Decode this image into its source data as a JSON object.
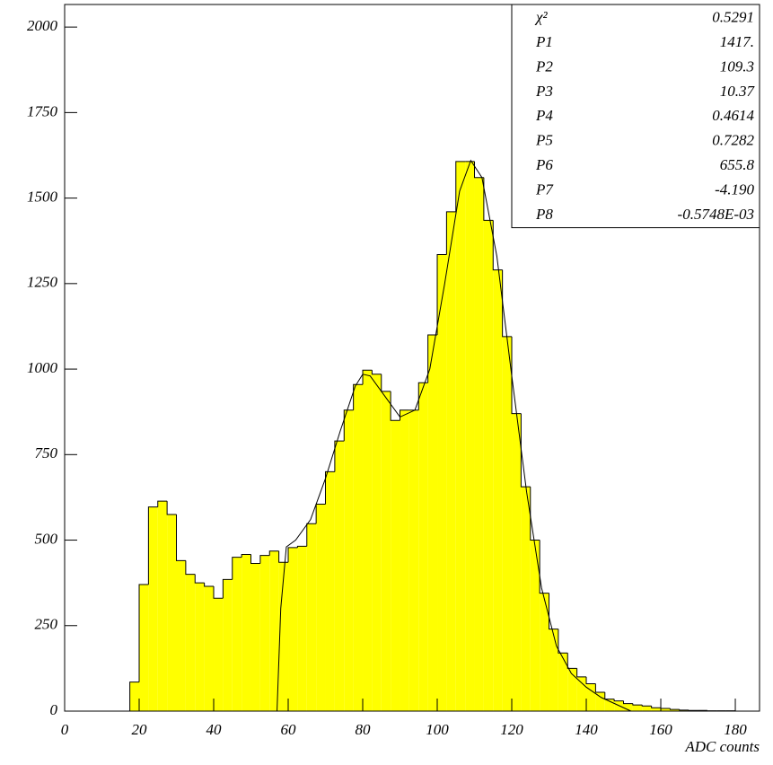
{
  "chart_data": {
    "type": "histogram",
    "x_label": "ADC counts",
    "bins": [
      17.5,
      20,
      22.5,
      25,
      27.5,
      30,
      32.5,
      35,
      37.5,
      40,
      42.5,
      45,
      47.5,
      50,
      52.5,
      55,
      57.5,
      60,
      62.5,
      65,
      67.5,
      70,
      72.5,
      75,
      77.5,
      80,
      82.5,
      85,
      87.5,
      90,
      92.5,
      95,
      97.5,
      100,
      102.5,
      105,
      107.5,
      110,
      112.5,
      115,
      117.5,
      120,
      122.5,
      125,
      127.5,
      130,
      132.5,
      135,
      137.5,
      140,
      142.5,
      145,
      147.5,
      150,
      152.5,
      155,
      157.5,
      160,
      162.5,
      165,
      167.5,
      170,
      172.5,
      175,
      177.5,
      180,
      182.5,
      185
    ],
    "values": [
      85,
      370,
      597,
      614,
      575,
      440,
      400,
      375,
      365,
      330,
      385,
      450,
      458,
      432,
      455,
      468,
      435,
      478,
      482,
      548,
      605,
      700,
      790,
      880,
      955,
      997,
      985,
      935,
      850,
      880,
      880,
      960,
      1100,
      1335,
      1460,
      1607,
      1607,
      1560,
      1435,
      1290,
      1095,
      870,
      656,
      500,
      345,
      240,
      170,
      125,
      100,
      80,
      55,
      35,
      30,
      22,
      18,
      15,
      10,
      8,
      5,
      3,
      2,
      2,
      1,
      1,
      1,
      0,
      0
    ],
    "color": "#ffff00",
    "fit": {
      "color": "#000000",
      "x": [
        57,
        58,
        59.5,
        62,
        66,
        70,
        74,
        78,
        80,
        82,
        86,
        90,
        94,
        98,
        102,
        106,
        109,
        112,
        116,
        120,
        124,
        128,
        132,
        136,
        140,
        144,
        148,
        152
      ],
      "values": [
        0,
        300,
        480,
        500,
        560,
        680,
        820,
        950,
        985,
        980,
        920,
        860,
        880,
        1000,
        1250,
        1520,
        1610,
        1560,
        1330,
        980,
        640,
        360,
        190,
        110,
        70,
        40,
        20,
        0
      ]
    },
    "xlim": [
      0,
      186.5
    ],
    "xticks": [
      0,
      20,
      40,
      60,
      80,
      100,
      120,
      140,
      160,
      180
    ],
    "ylim": [
      0,
      2066
    ],
    "yticks": [
      0,
      250,
      500,
      750,
      1000,
      1250,
      1500,
      1750,
      2000
    ],
    "stats": [
      {
        "label": "χ²",
        "value": "0.5291"
      },
      {
        "label": "P1",
        "value": "1417."
      },
      {
        "label": "P2",
        "value": "109.3"
      },
      {
        "label": "P3",
        "value": "10.37"
      },
      {
        "label": "P4",
        "value": "0.4614"
      },
      {
        "label": "P5",
        "value": "0.7282"
      },
      {
        "label": "P6",
        "value": "655.8"
      },
      {
        "label": "P7",
        "value": "-4.190"
      },
      {
        "label": "P8",
        "value": "-0.5748E-03"
      }
    ]
  }
}
